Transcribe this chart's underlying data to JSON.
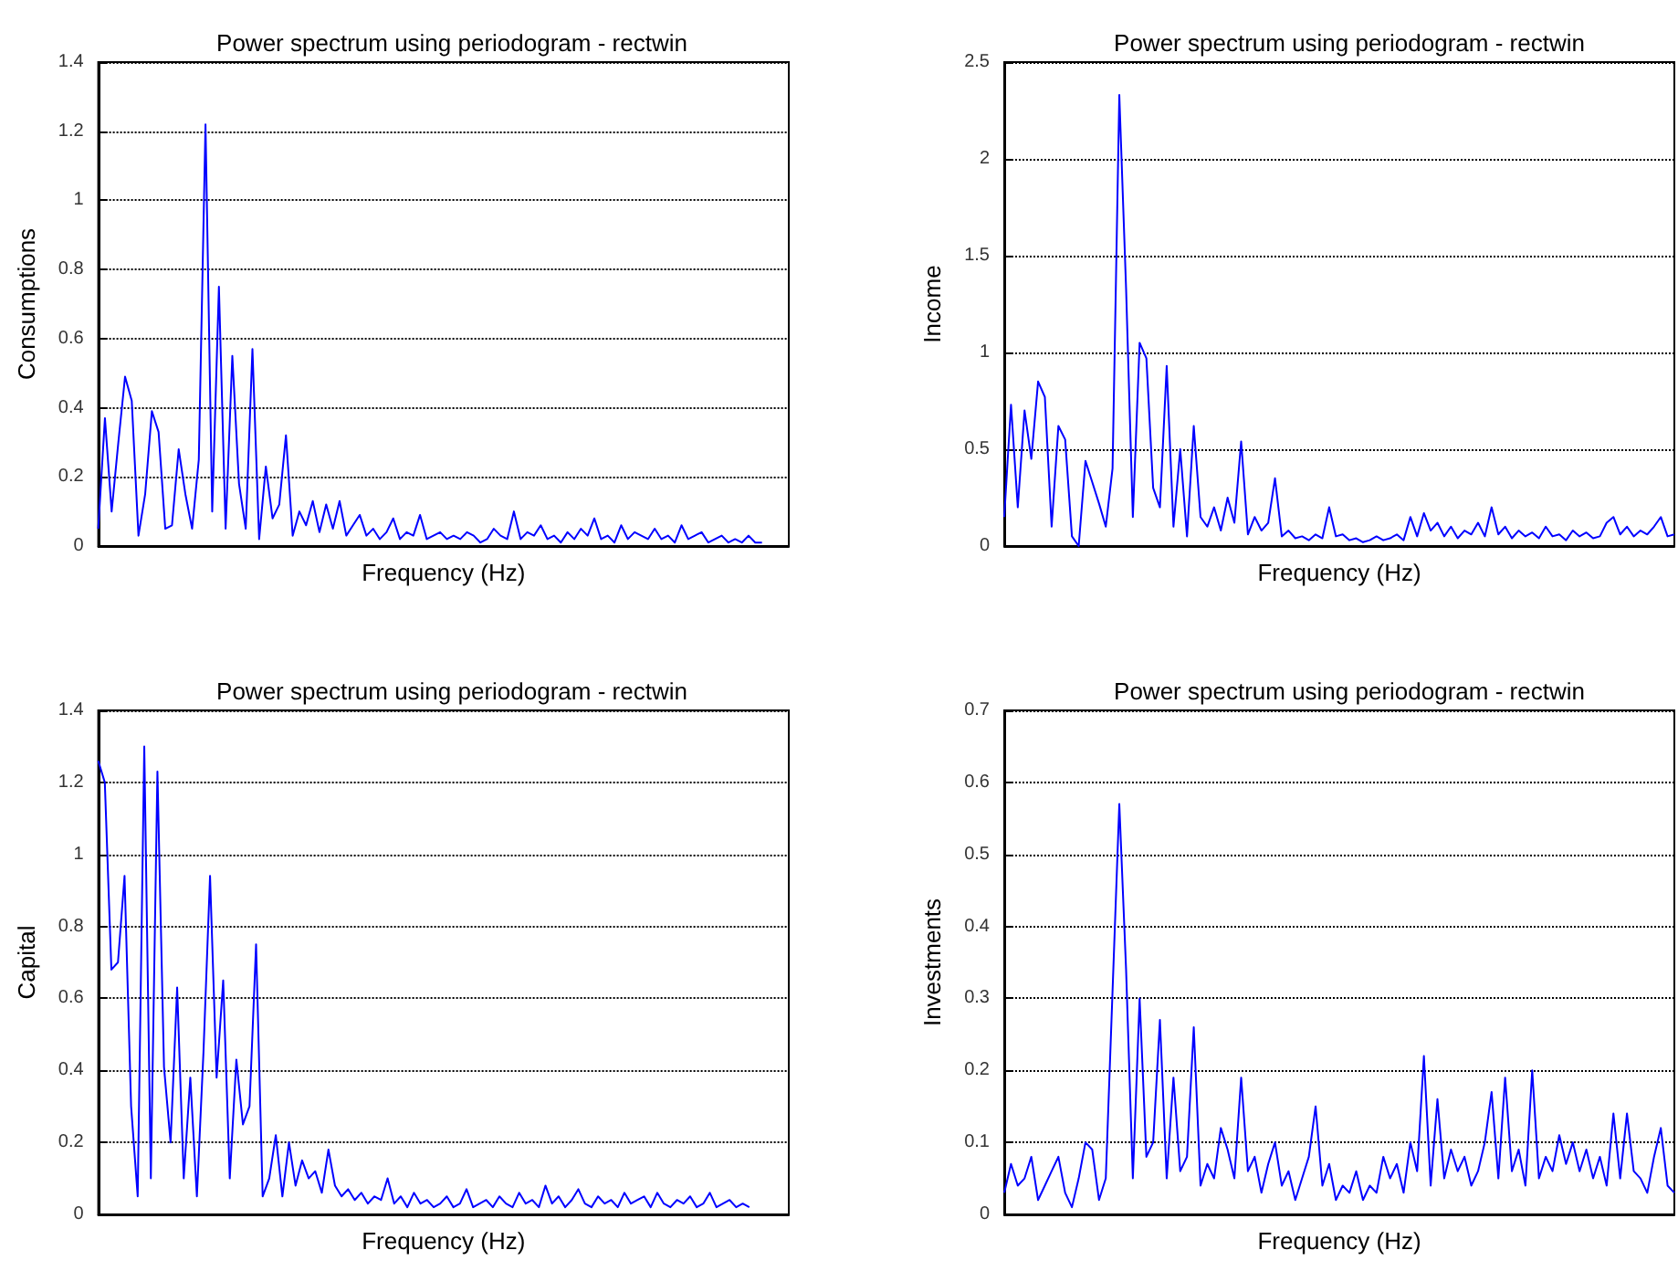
{
  "chart_data": [
    {
      "type": "line",
      "title": "Power spectrum using periodogram - rectwin",
      "xlabel": "Frequency (Hz)",
      "ylabel": "Consumptions",
      "color": "#0000ff",
      "ylim": [
        0,
        1.4
      ],
      "yticks": [
        0,
        0.2,
        0.4,
        0.6,
        0.8,
        1,
        1.2,
        1.4
      ],
      "grid": "y",
      "tick_labels": "y",
      "categories": [
        null,
        null,
        null,
        null,
        null,
        null,
        null,
        null,
        null,
        null,
        null,
        null,
        null,
        null,
        null,
        null,
        null,
        null,
        null,
        null,
        null,
        null,
        null,
        null,
        null,
        null,
        null,
        null,
        null,
        null,
        null,
        null,
        null,
        null,
        null,
        null,
        null,
        null,
        null,
        null,
        null,
        null,
        null,
        null,
        null,
        null,
        null,
        null,
        null,
        null,
        null,
        null,
        null,
        null,
        null,
        null,
        null,
        null,
        null,
        null,
        null,
        null,
        null,
        null,
        null,
        null,
        null,
        null,
        null,
        null,
        null,
        null,
        null,
        null,
        null,
        null,
        null,
        null,
        null,
        null,
        null,
        null,
        null,
        null,
        null,
        null,
        null,
        null,
        null,
        null,
        null,
        null,
        null,
        null,
        null,
        null,
        null,
        null,
        null,
        null,
        null,
        null,
        null,
        null
      ],
      "values": [
        0.05,
        0.37,
        0.1,
        0.3,
        0.49,
        0.42,
        0.03,
        0.15,
        0.39,
        0.33,
        0.05,
        0.06,
        0.28,
        0.15,
        0.05,
        0.25,
        1.22,
        0.1,
        0.75,
        0.05,
        0.55,
        0.18,
        0.05,
        0.57,
        0.02,
        0.23,
        0.08,
        0.12,
        0.32,
        0.03,
        0.1,
        0.06,
        0.13,
        0.04,
        0.12,
        0.05,
        0.13,
        0.03,
        0.06,
        0.09,
        0.03,
        0.05,
        0.02,
        0.04,
        0.08,
        0.02,
        0.04,
        0.03,
        0.09,
        0.02,
        0.03,
        0.04,
        0.02,
        0.03,
        0.02,
        0.04,
        0.03,
        0.01,
        0.02,
        0.05,
        0.03,
        0.02,
        0.1,
        0.02,
        0.04,
        0.03,
        0.06,
        0.02,
        0.03,
        0.01,
        0.04,
        0.02,
        0.05,
        0.03,
        0.08,
        0.02,
        0.03,
        0.01,
        0.06,
        0.02,
        0.04,
        0.03,
        0.02,
        0.05,
        0.02,
        0.03,
        0.01,
        0.06,
        0.02,
        0.03,
        0.04,
        0.01,
        0.02,
        0.03,
        0.01,
        0.02,
        0.01,
        0.03,
        0.01,
        0.01,
        null,
        null,
        null,
        null
      ]
    },
    {
      "type": "line",
      "title": "Power spectrum using periodogram - rectwin",
      "xlabel": "Frequency (Hz)",
      "ylabel": "Income",
      "color": "#0000ff",
      "ylim": [
        0,
        2.5
      ],
      "yticks": [
        0,
        0.5,
        1,
        1.5,
        2,
        2.5
      ],
      "grid": "y",
      "tick_labels": "y",
      "categories": [
        null,
        null,
        null,
        null,
        null,
        null,
        null,
        null,
        null,
        null,
        null,
        null,
        null,
        null,
        null,
        null,
        null,
        null,
        null,
        null,
        null,
        null,
        null,
        null,
        null,
        null,
        null,
        null,
        null,
        null,
        null,
        null,
        null,
        null,
        null,
        null,
        null,
        null,
        null,
        null,
        null,
        null,
        null,
        null,
        null,
        null,
        null,
        null,
        null,
        null,
        null,
        null,
        null,
        null,
        null,
        null,
        null,
        null,
        null,
        null,
        null,
        null,
        null,
        null,
        null,
        null,
        null,
        null,
        null,
        null,
        null,
        null,
        null,
        null,
        null,
        null,
        null,
        null,
        null,
        null,
        null,
        null,
        null,
        null,
        null,
        null,
        null,
        null,
        null,
        null,
        null,
        null,
        null,
        null,
        null,
        null,
        null,
        null,
        null,
        null
      ],
      "values": [
        0.15,
        0.73,
        0.2,
        0.7,
        0.45,
        0.85,
        0.77,
        0.1,
        0.62,
        0.55,
        0.05,
        0.0,
        0.44,
        0.33,
        0.22,
        0.1,
        0.4,
        2.33,
        1.33,
        0.15,
        1.05,
        0.97,
        0.3,
        0.2,
        0.93,
        0.1,
        0.5,
        0.05,
        0.62,
        0.15,
        0.1,
        0.2,
        0.08,
        0.25,
        0.12,
        0.54,
        0.06,
        0.15,
        0.08,
        0.12,
        0.35,
        0.05,
        0.08,
        0.04,
        0.05,
        0.03,
        0.06,
        0.04,
        0.2,
        0.05,
        0.06,
        0.03,
        0.04,
        0.02,
        0.03,
        0.05,
        0.03,
        0.04,
        0.06,
        0.03,
        0.15,
        0.05,
        0.17,
        0.08,
        0.12,
        0.05,
        0.1,
        0.04,
        0.08,
        0.06,
        0.12,
        0.05,
        0.2,
        0.06,
        0.1,
        0.04,
        0.08,
        0.05,
        0.07,
        0.04,
        0.1,
        0.05,
        0.06,
        0.03,
        0.08,
        0.05,
        0.07,
        0.04,
        0.05,
        0.12,
        0.15,
        0.06,
        0.1,
        0.05,
        0.08,
        0.06,
        0.1,
        0.15,
        0.05,
        0.06
      ]
    },
    {
      "type": "line",
      "title": "Power spectrum using periodogram - rectwin",
      "xlabel": "Frequency (Hz)",
      "ylabel": "Capital",
      "color": "#0000ff",
      "ylim": [
        0,
        1.4
      ],
      "yticks": [
        0,
        0.2,
        0.4,
        0.6,
        0.8,
        1,
        1.2,
        1.4
      ],
      "grid": "y",
      "tick_labels": "y",
      "categories": [
        null,
        null,
        null,
        null,
        null,
        null,
        null,
        null,
        null,
        null,
        null,
        null,
        null,
        null,
        null,
        null,
        null,
        null,
        null,
        null,
        null,
        null,
        null,
        null,
        null,
        null,
        null,
        null,
        null,
        null,
        null,
        null,
        null,
        null,
        null,
        null,
        null,
        null,
        null,
        null,
        null,
        null,
        null,
        null,
        null,
        null,
        null,
        null,
        null,
        null,
        null,
        null,
        null,
        null,
        null,
        null,
        null,
        null,
        null,
        null,
        null,
        null,
        null,
        null,
        null,
        null,
        null,
        null,
        null,
        null,
        null,
        null,
        null,
        null,
        null,
        null,
        null,
        null,
        null,
        null,
        null,
        null,
        null,
        null,
        null,
        null,
        null,
        null,
        null,
        null,
        null,
        null,
        null,
        null,
        null,
        null,
        null,
        null,
        null,
        null,
        null,
        null,
        null,
        null,
        null,
        null
      ],
      "values": [
        1.26,
        1.2,
        0.68,
        0.7,
        0.94,
        0.3,
        0.05,
        1.3,
        0.1,
        1.23,
        0.41,
        0.2,
        0.63,
        0.1,
        0.38,
        0.05,
        0.45,
        0.94,
        0.38,
        0.65,
        0.1,
        0.43,
        0.25,
        0.3,
        0.75,
        0.05,
        0.1,
        0.22,
        0.05,
        0.2,
        0.08,
        0.15,
        0.1,
        0.12,
        0.06,
        0.18,
        0.08,
        0.05,
        0.07,
        0.04,
        0.06,
        0.03,
        0.05,
        0.04,
        0.1,
        0.03,
        0.05,
        0.02,
        0.06,
        0.03,
        0.04,
        0.02,
        0.03,
        0.05,
        0.02,
        0.03,
        0.07,
        0.02,
        0.03,
        0.04,
        0.02,
        0.05,
        0.03,
        0.02,
        0.06,
        0.03,
        0.04,
        0.02,
        0.08,
        0.03,
        0.05,
        0.02,
        0.04,
        0.07,
        0.03,
        0.02,
        0.05,
        0.03,
        0.04,
        0.02,
        0.06,
        0.03,
        0.04,
        0.05,
        0.02,
        0.06,
        0.03,
        0.02,
        0.04,
        0.03,
        0.05,
        0.02,
        0.03,
        0.06,
        0.02,
        0.03,
        0.04,
        0.02,
        0.03,
        0.02,
        null,
        null,
        null,
        null,
        null,
        null
      ]
    },
    {
      "type": "line",
      "title": "Power spectrum using periodogram - rectwin",
      "xlabel": "Frequency (Hz)",
      "ylabel": "Investments",
      "color": "#0000ff",
      "ylim": [
        0,
        0.7
      ],
      "yticks": [
        0,
        0.1,
        0.2,
        0.3,
        0.4,
        0.5,
        0.6,
        0.7
      ],
      "grid": "y",
      "tick_labels": "y",
      "categories": [
        null,
        null,
        null,
        null,
        null,
        null,
        null,
        null,
        null,
        null,
        null,
        null,
        null,
        null,
        null,
        null,
        null,
        null,
        null,
        null,
        null,
        null,
        null,
        null,
        null,
        null,
        null,
        null,
        null,
        null,
        null,
        null,
        null,
        null,
        null,
        null,
        null,
        null,
        null,
        null,
        null,
        null,
        null,
        null,
        null,
        null,
        null,
        null,
        null,
        null,
        null,
        null,
        null,
        null,
        null,
        null,
        null,
        null,
        null,
        null,
        null,
        null,
        null,
        null,
        null,
        null,
        null,
        null,
        null,
        null,
        null,
        null,
        null,
        null,
        null,
        null,
        null,
        null,
        null,
        null,
        null,
        null,
        null,
        null,
        null,
        null,
        null,
        null,
        null,
        null,
        null,
        null,
        null,
        null,
        null,
        null,
        null,
        null,
        null,
        null
      ],
      "values": [
        0.03,
        0.07,
        0.04,
        0.05,
        0.08,
        0.02,
        0.04,
        0.06,
        0.08,
        0.03,
        0.01,
        0.05,
        0.1,
        0.09,
        0.02,
        0.05,
        0.31,
        0.57,
        0.34,
        0.05,
        0.3,
        0.08,
        0.1,
        0.27,
        0.05,
        0.19,
        0.06,
        0.08,
        0.26,
        0.04,
        0.07,
        0.05,
        0.12,
        0.09,
        0.05,
        0.19,
        0.06,
        0.08,
        0.03,
        0.07,
        0.1,
        0.04,
        0.06,
        0.02,
        0.05,
        0.08,
        0.15,
        0.04,
        0.07,
        0.02,
        0.04,
        0.03,
        0.06,
        0.02,
        0.04,
        0.03,
        0.08,
        0.05,
        0.07,
        0.03,
        0.1,
        0.06,
        0.22,
        0.04,
        0.16,
        0.05,
        0.09,
        0.06,
        0.08,
        0.04,
        0.06,
        0.1,
        0.17,
        0.05,
        0.19,
        0.06,
        0.09,
        0.04,
        0.2,
        0.05,
        0.08,
        0.06,
        0.11,
        0.07,
        0.1,
        0.06,
        0.09,
        0.05,
        0.08,
        0.04,
        0.14,
        0.05,
        0.14,
        0.06,
        0.05,
        0.03,
        0.08,
        0.12,
        0.04,
        0.03
      ]
    }
  ]
}
